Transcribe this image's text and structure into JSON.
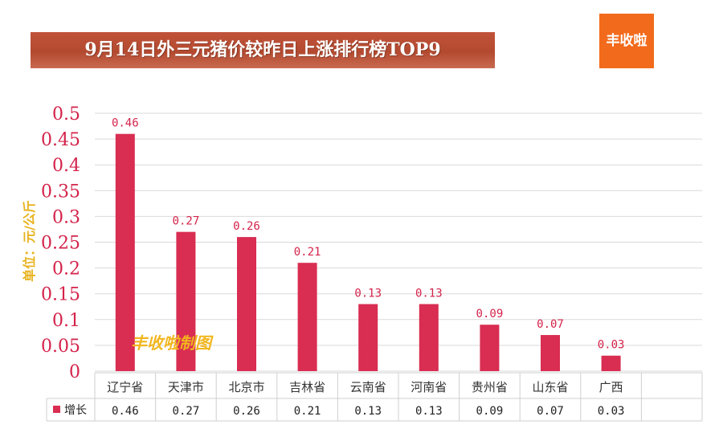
{
  "header": {
    "title": "9月14日外三元猪价较昨日上涨排行榜TOP9",
    "logo_text": "丰收啦"
  },
  "watermark": "丰收啦制图",
  "colors": {
    "bar": "#d92d52",
    "title_bg": "#b94d33",
    "logo_bg": "#f26a1b",
    "tick_text": "#d4234a",
    "unit_label": "#e8b320"
  },
  "chart_data": {
    "type": "bar",
    "title": "9月14日外三元猪价较昨日上涨排行榜TOP9",
    "ylabel": "单位：元/公斤",
    "xlabel": "",
    "ylim": [
      0,
      0.5
    ],
    "yticks": [
      "0",
      "0.05",
      "0.1",
      "0.15",
      "0.2",
      "0.25",
      "0.3",
      "0.35",
      "0.4",
      "0.45",
      "0.5"
    ],
    "ytick_values": [
      0,
      0.05,
      0.1,
      0.15,
      0.2,
      0.25,
      0.3,
      0.35,
      0.4,
      0.45,
      0.5
    ],
    "grid": true,
    "legend": "data-table",
    "categories": [
      "辽宁省",
      "天津市",
      "北京市",
      "吉林省",
      "云南省",
      "河南省",
      "贵州省",
      "山东省",
      "广西"
    ],
    "series": [
      {
        "name": "增长",
        "values": [
          0.46,
          0.27,
          0.26,
          0.21,
          0.13,
          0.13,
          0.09,
          0.07,
          0.03
        ],
        "labels": [
          "0.46",
          "0.27",
          "0.26",
          "0.21",
          "0.13",
          "0.13",
          "0.09",
          "0.07",
          "0.03"
        ]
      }
    ]
  }
}
